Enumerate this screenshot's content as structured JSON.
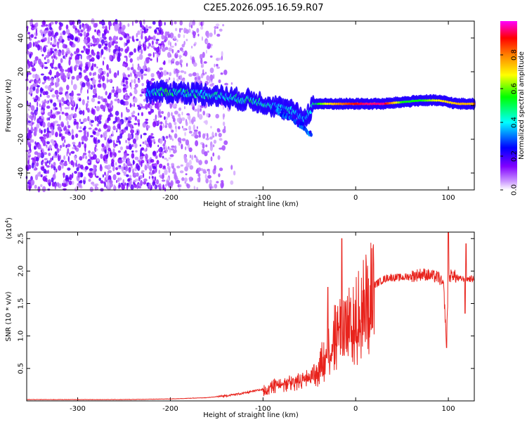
{
  "title": "C2E5.2026.095.16.59.R07",
  "chart_data": [
    {
      "type": "heatmap",
      "name": "spectrogram",
      "title": "C2E5.2026.095.16.59.R07",
      "xlabel": "Height of straight line (km)",
      "ylabel": "Frequency (Hz)",
      "xlim": [
        -355,
        128
      ],
      "ylim": [
        -50,
        50
      ],
      "xticks": [
        -300,
        -200,
        -100,
        0,
        100
      ],
      "xtick_labels": [
        "-300",
        "-200",
        "-100",
        "0",
        "100"
      ],
      "yticks": [
        -40,
        -20,
        0,
        20,
        40
      ],
      "ytick_labels": [
        "-40",
        "-20",
        "0",
        "20",
        "40"
      ],
      "colorbar": {
        "label": "Normalized spectral amplitude",
        "range": [
          0,
          1
        ],
        "ticks": [
          0.0,
          0.2,
          0.4,
          0.6,
          0.8
        ],
        "tick_labels": [
          "0.0",
          "0.2",
          "0.4",
          "0.6",
          "0.8"
        ],
        "colors": [
          "#ffffff",
          "#cc99ff",
          "#8000ff",
          "#0000ff",
          "#00ffff",
          "#00ff00",
          "#ffff00",
          "#ff8000",
          "#ff0000",
          "#ff00ff"
        ]
      },
      "signal_track": [
        {
          "x": -225,
          "y": 8,
          "amp": 0.35
        },
        {
          "x": -210,
          "y": 8,
          "amp": 0.55
        },
        {
          "x": -190,
          "y": 8,
          "amp": 0.5
        },
        {
          "x": -170,
          "y": 7,
          "amp": 0.45
        },
        {
          "x": -150,
          "y": 6,
          "amp": 0.45
        },
        {
          "x": -130,
          "y": 4,
          "amp": 0.45
        },
        {
          "x": -110,
          "y": 3,
          "amp": 0.5
        },
        {
          "x": -90,
          "y": 0,
          "amp": 0.45
        },
        {
          "x": -70,
          "y": -3,
          "amp": 0.4
        },
        {
          "x": -55,
          "y": -8,
          "amp": 0.35
        },
        {
          "x": -45,
          "y": 1,
          "amp": 0.5
        },
        {
          "x": -30,
          "y": 1,
          "amp": 0.7
        },
        {
          "x": -10,
          "y": 1,
          "amp": 0.85
        },
        {
          "x": 10,
          "y": 1,
          "amp": 0.95
        },
        {
          "x": 30,
          "y": 1,
          "amp": 0.95
        },
        {
          "x": 50,
          "y": 2,
          "amp": 0.55
        },
        {
          "x": 70,
          "y": 3,
          "amp": 0.55
        },
        {
          "x": 90,
          "y": 3,
          "amp": 0.7
        },
        {
          "x": 110,
          "y": 1,
          "amp": 0.75
        },
        {
          "x": 128,
          "y": 1,
          "amp": 0.75
        }
      ],
      "branch_track": [
        {
          "x": -90,
          "y": -2
        },
        {
          "x": -70,
          "y": -7
        },
        {
          "x": -55,
          "y": -13
        },
        {
          "x": -48,
          "y": -18
        }
      ],
      "noise_region": {
        "x_start": -355,
        "x_end": -130,
        "dense_until": -205
      }
    },
    {
      "type": "line",
      "name": "snr",
      "xlabel": "Height of straight line (km)",
      "ylabel": "SNR (10 * v/v)",
      "y_scale_label": "(x10",
      "y_scale_exponent": "4",
      "y_multiplier": 10000,
      "xlim": [
        -355,
        128
      ],
      "ylim": [
        0,
        2.6
      ],
      "xticks": [
        -300,
        -200,
        -100,
        0,
        100
      ],
      "xtick_labels": [
        "-300",
        "-200",
        "-100",
        "0",
        "100"
      ],
      "yticks": [
        0.5,
        1.0,
        1.5,
        2.0,
        2.5
      ],
      "ytick_labels": [
        "0.5",
        "1.0",
        "1.5",
        "2.0",
        "2.5"
      ],
      "color": "#e8231c",
      "series": [
        {
          "name": "SNR",
          "x": [
            -355,
            -300,
            -250,
            -200,
            -160,
            -140,
            -120,
            -100,
            -90,
            -80,
            -70,
            -60,
            -50,
            -45,
            -40,
            -35,
            -30,
            -25,
            -20,
            -15,
            -10,
            -5,
            0,
            5,
            10,
            15,
            20,
            25,
            30,
            35,
            40,
            50,
            60,
            70,
            75,
            80,
            90,
            95,
            98,
            100,
            105,
            110,
            115,
            120,
            128
          ],
          "y": [
            0.02,
            0.02,
            0.02,
            0.03,
            0.05,
            0.08,
            0.12,
            0.18,
            0.25,
            0.3,
            0.32,
            0.35,
            0.4,
            0.45,
            0.55,
            0.7,
            0.85,
            1.0,
            1.1,
            1.2,
            1.25,
            1.3,
            1.35,
            1.45,
            1.6,
            1.7,
            1.78,
            1.83,
            1.87,
            1.9,
            1.9,
            1.9,
            1.92,
            1.95,
            1.95,
            1.93,
            1.9,
            1.75,
            0.85,
            1.9,
            1.95,
            1.88,
            1.88,
            1.88,
            1.88
          ]
        }
      ],
      "spikes": [
        {
          "x": -15,
          "y": 2.5
        },
        {
          "x": -30,
          "y": 1.75
        },
        {
          "x": 100,
          "y": 2.6
        },
        {
          "x": 98,
          "y": 0.82
        },
        {
          "x": 119,
          "y": 2.42
        },
        {
          "x": 118,
          "y": 1.35
        }
      ]
    }
  ]
}
